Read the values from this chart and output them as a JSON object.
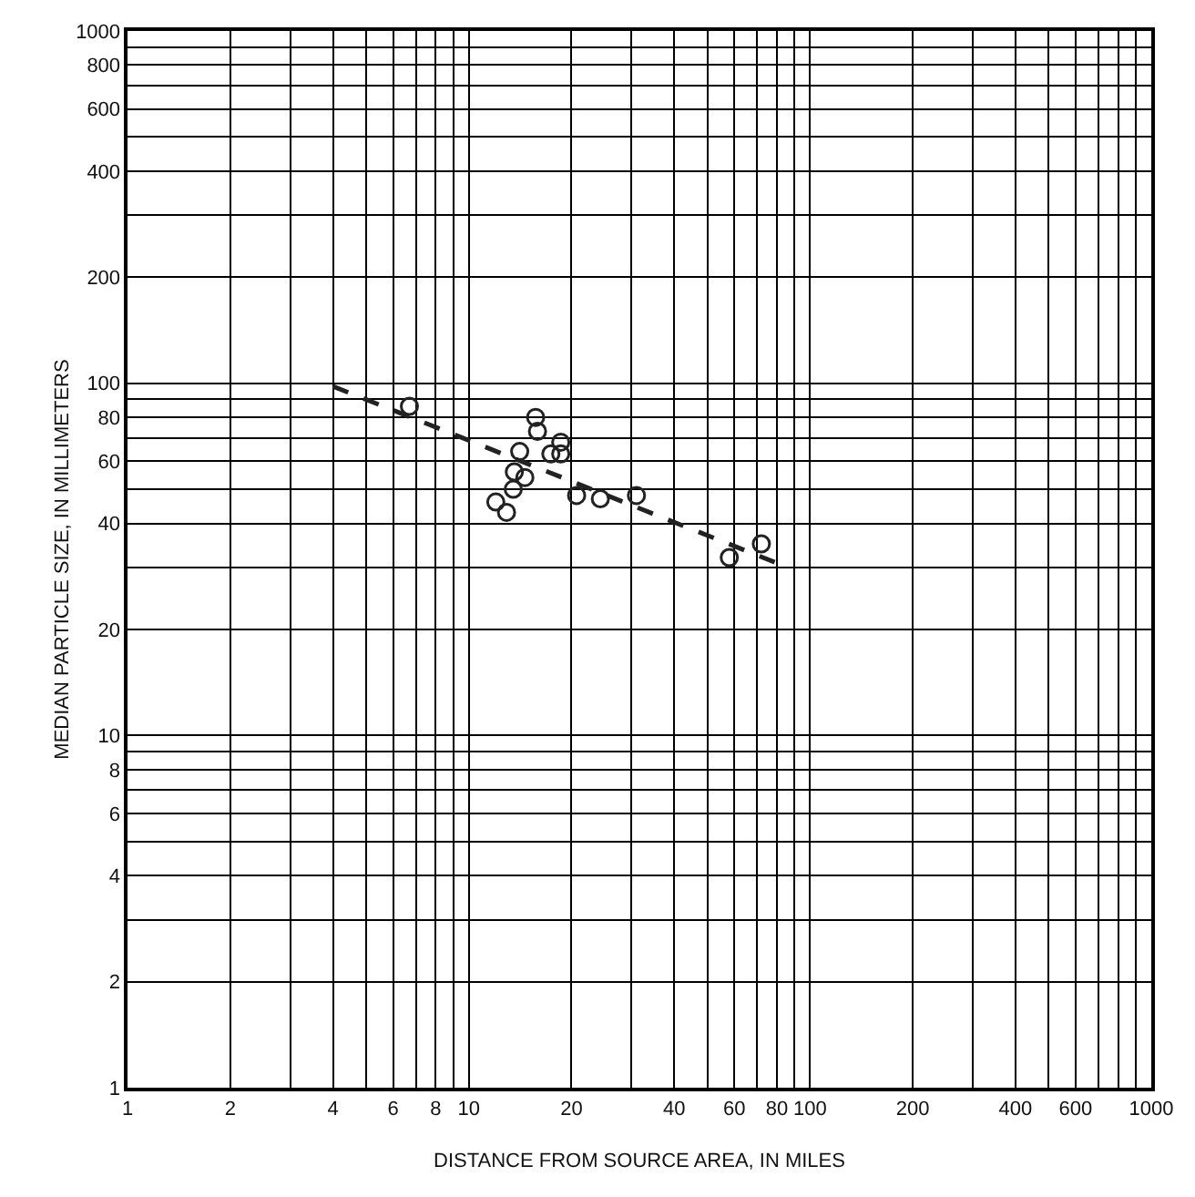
{
  "chart_data": {
    "type": "scatter",
    "xlabel": "DISTANCE FROM SOURCE AREA, IN MILES",
    "ylabel": "MEDIAN PARTICLE SIZE, IN MILLIMETERS",
    "log": "xy",
    "grid": true,
    "legend": false,
    "marker": "circle",
    "xlim": [
      1,
      1000
    ],
    "ylim": [
      1,
      1000
    ],
    "xticks": [
      1,
      2,
      {
        "value": 3,
        "label": null
      },
      4,
      {
        "value": 5,
        "label": null
      },
      6,
      {
        "value": 7,
        "label": null
      },
      8,
      {
        "value": 9,
        "label": null
      },
      10,
      20,
      {
        "value": 30,
        "label": null
      },
      40,
      {
        "value": 50,
        "label": null
      },
      60,
      {
        "value": 70,
        "label": null
      },
      80,
      {
        "value": 90,
        "label": null
      },
      100,
      200,
      {
        "value": 300,
        "label": null
      },
      400,
      {
        "value": 500,
        "label": null
      },
      600,
      {
        "value": 700,
        "label": null
      },
      {
        "value": 800,
        "label": null
      },
      {
        "value": 900,
        "label": null
      },
      1000
    ],
    "yticks": [
      1,
      2,
      {
        "value": 3,
        "label": null
      },
      4,
      {
        "value": 5,
        "label": null
      },
      6,
      {
        "value": 7,
        "label": null
      },
      8,
      {
        "value": 9,
        "label": null
      },
      10,
      20,
      {
        "value": 30,
        "label": null
      },
      40,
      {
        "value": 50,
        "label": null
      },
      60,
      {
        "value": 70,
        "label": null
      },
      80,
      {
        "value": 90,
        "label": null
      },
      100,
      200,
      {
        "value": 300,
        "label": null
      },
      400,
      {
        "value": 500,
        "label": null
      },
      600,
      {
        "value": 700,
        "label": null
      },
      800,
      {
        "value": 900,
        "label": null
      },
      1000
    ],
    "series": [
      {
        "color": "#222222",
        "x": [
          6.7,
          15.7,
          15.9,
          18.6,
          18.6,
          17.4,
          14.1,
          13.6,
          14.6,
          13.5,
          12,
          12.9,
          20.7,
          24.3,
          31,
          58,
          72
        ],
        "values": [
          86,
          80,
          73,
          68,
          63,
          63,
          64,
          56,
          54,
          50,
          46,
          43,
          48,
          47,
          48,
          32,
          35
        ]
      },
      {
        "type": "line",
        "color": "#222222",
        "line_style": "dashed",
        "marker": "none",
        "x": [
          4,
          86
        ],
        "values": [
          98,
          30
        ]
      }
    ]
  }
}
